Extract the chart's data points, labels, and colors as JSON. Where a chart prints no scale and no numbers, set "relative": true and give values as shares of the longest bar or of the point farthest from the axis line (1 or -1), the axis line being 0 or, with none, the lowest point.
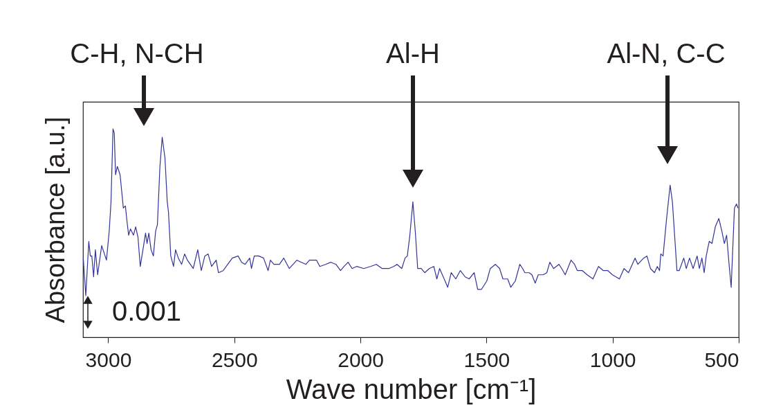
{
  "chart_data": {
    "type": "line",
    "relative": true,
    "xlabel": "Wave number [cm⁻¹]",
    "ylabel": "Absorbance [a.u.]",
    "xlim": [
      3100,
      500
    ],
    "xticks": [
      3000,
      2500,
      2000,
      1500,
      1000,
      500
    ],
    "grid": false,
    "marker": "none",
    "line_style": "solid",
    "annotations": [
      "C-H, N-CH",
      "Al-H",
      "Al-N, C-C",
      "0.001"
    ],
    "x": [
      3099,
      3089,
      3077,
      3071,
      3065,
      3058,
      3051,
      3042,
      3026,
      3015,
      3007,
      2996,
      2989,
      2981,
      2976,
      2971,
      2964,
      2953,
      2940,
      2932,
      2925,
      2919,
      2912,
      2900,
      2891,
      2882,
      2873,
      2861,
      2852,
      2846,
      2839,
      2830,
      2821,
      2812,
      2805,
      2795,
      2786,
      2775,
      2766,
      2761,
      2752,
      2741,
      2733,
      2722,
      2709,
      2697,
      2686,
      2663,
      2645,
      2631,
      2617,
      2604,
      2590,
      2572,
      2563,
      2544,
      2508,
      2485,
      2471,
      2457,
      2439,
      2432,
      2421,
      2403,
      2384,
      2366,
      2357,
      2343,
      2321,
      2304,
      2282,
      2252,
      2234,
      2216,
      2202,
      2174,
      2161,
      2138,
      2117,
      2097,
      2079,
      2065,
      2049,
      2033,
      2015,
      1987,
      1960,
      1937,
      1914,
      1887,
      1868,
      1855,
      1836,
      1823,
      1814,
      1804,
      1792,
      1782,
      1773,
      1759,
      1745,
      1727,
      1709,
      1697,
      1686,
      1668,
      1654,
      1640,
      1622,
      1604,
      1585,
      1569,
      1549,
      1535,
      1520,
      1499,
      1485,
      1465,
      1448,
      1435,
      1416,
      1404,
      1386,
      1368,
      1357,
      1348,
      1331,
      1320,
      1307,
      1295,
      1275,
      1261,
      1249,
      1234,
      1213,
      1202,
      1188,
      1165,
      1151,
      1140,
      1120,
      1101,
      1078,
      1056,
      1037,
      1019,
      1001,
      973,
      955,
      937,
      911,
      900,
      877,
      864,
      850,
      834,
      823,
      814,
      809,
      800,
      786,
      772,
      763,
      745,
      736,
      718,
      708,
      695,
      681,
      665,
      656,
      646,
      637,
      629,
      617,
      606,
      593,
      579,
      567,
      557,
      548,
      539,
      530,
      517,
      509,
      503
    ],
    "series": [
      {
        "color": "#33339a",
        "values": [
          0.38,
          0.2,
          0.46,
          0.39,
          0.39,
          0.29,
          0.42,
          0.3,
          0.44,
          0.4,
          0.37,
          0.51,
          0.65,
          1.0,
          0.98,
          0.78,
          0.82,
          0.78,
          0.62,
          0.63,
          0.55,
          0.49,
          0.52,
          0.49,
          0.53,
          0.48,
          0.34,
          0.43,
          0.5,
          0.45,
          0.5,
          0.42,
          0.39,
          0.51,
          0.54,
          0.82,
          0.96,
          0.86,
          0.65,
          0.6,
          0.39,
          0.34,
          0.42,
          0.38,
          0.35,
          0.4,
          0.37,
          0.33,
          0.42,
          0.32,
          0.39,
          0.4,
          0.34,
          0.37,
          0.31,
          0.32,
          0.38,
          0.39,
          0.36,
          0.35,
          0.38,
          0.33,
          0.39,
          0.39,
          0.38,
          0.32,
          0.37,
          0.35,
          0.35,
          0.38,
          0.33,
          0.37,
          0.36,
          0.35,
          0.37,
          0.37,
          0.34,
          0.35,
          0.36,
          0.35,
          0.32,
          0.34,
          0.36,
          0.33,
          0.34,
          0.33,
          0.34,
          0.35,
          0.33,
          0.33,
          0.34,
          0.35,
          0.33,
          0.38,
          0.39,
          0.49,
          0.65,
          0.5,
          0.33,
          0.33,
          0.31,
          0.33,
          0.34,
          0.28,
          0.33,
          0.28,
          0.24,
          0.31,
          0.28,
          0.32,
          0.29,
          0.28,
          0.31,
          0.23,
          0.23,
          0.27,
          0.33,
          0.35,
          0.33,
          0.28,
          0.28,
          0.24,
          0.27,
          0.35,
          0.33,
          0.31,
          0.31,
          0.3,
          0.26,
          0.3,
          0.3,
          0.31,
          0.36,
          0.33,
          0.35,
          0.33,
          0.3,
          0.37,
          0.35,
          0.32,
          0.32,
          0.3,
          0.28,
          0.34,
          0.32,
          0.32,
          0.3,
          0.28,
          0.33,
          0.31,
          0.38,
          0.35,
          0.38,
          0.39,
          0.33,
          0.31,
          0.34,
          0.32,
          0.4,
          0.39,
          0.57,
          0.73,
          0.65,
          0.32,
          0.32,
          0.38,
          0.33,
          0.38,
          0.33,
          0.39,
          0.33,
          0.38,
          0.31,
          0.39,
          0.46,
          0.45,
          0.53,
          0.57,
          0.51,
          0.45,
          0.49,
          0.36,
          0.24,
          0.62,
          0.64,
          0.62
        ]
      }
    ]
  }
}
